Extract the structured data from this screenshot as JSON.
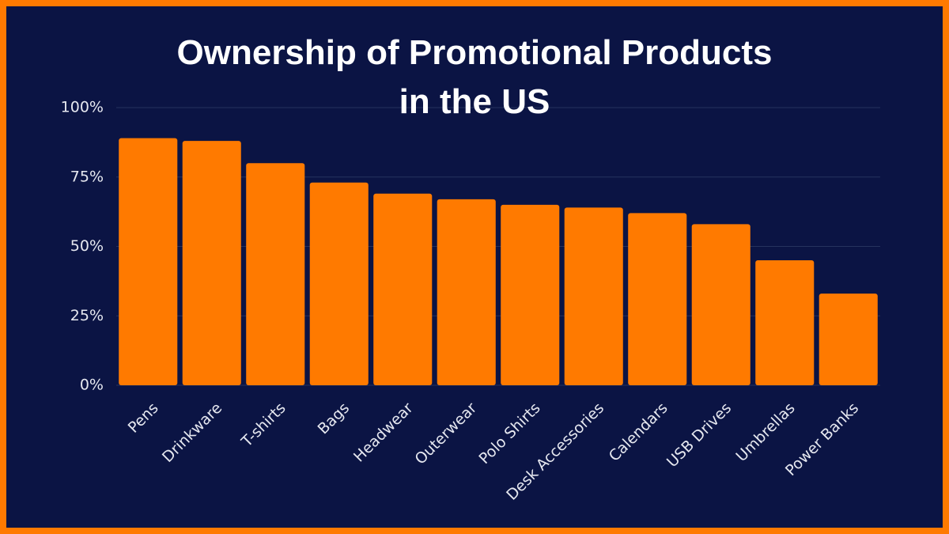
{
  "chart_data": {
    "type": "bar",
    "title": "Ownership of Promotional Products\nin the US",
    "categories": [
      "Pens",
      "Drinkware",
      "T-shirts",
      "Bags",
      "Headwear",
      "Outerwear",
      "Polo Shirts",
      "Desk Accessories",
      "Calendars",
      "USB Drives",
      "Umbrellas",
      "Power Banks"
    ],
    "values": [
      89,
      88,
      80,
      73,
      69,
      67,
      65,
      64,
      62,
      58,
      45,
      33
    ],
    "color": "#ff7a00",
    "ylim": [
      0,
      100
    ],
    "yticks": [
      {
        "value": 0,
        "label": "0%"
      },
      {
        "value": 25,
        "label": "25%"
      },
      {
        "value": 50,
        "label": "50%"
      },
      {
        "value": 75,
        "label": "75%"
      },
      {
        "value": 100,
        "label": "100%"
      }
    ],
    "grid": true
  }
}
